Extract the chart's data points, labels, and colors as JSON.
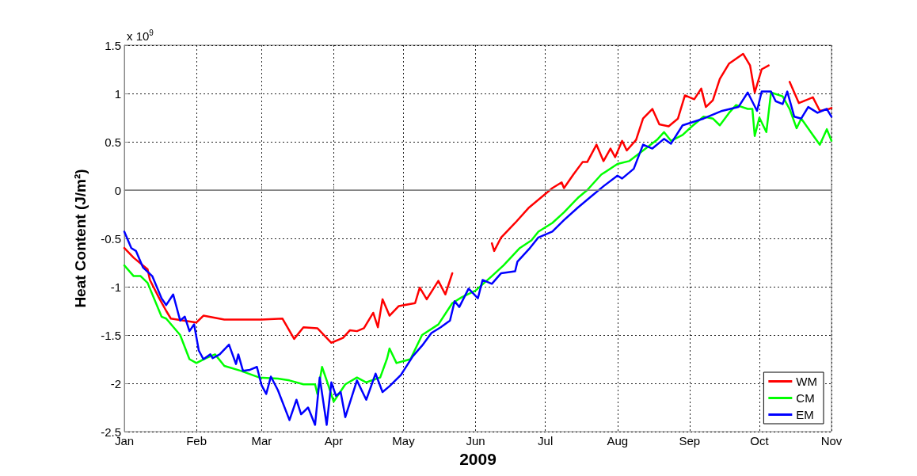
{
  "chart_data": {
    "type": "line",
    "ylabel": "Heat Content (J/m²)",
    "xlabel": "2009",
    "annotations": [
      "x 10$^{9}$"
    ],
    "xlim": [
      "2009-01-01",
      "2009-11-01"
    ],
    "xticks": [
      {
        "value": "2009-01-01",
        "label": "Jan"
      },
      {
        "value": "2009-02-01",
        "label": "Feb"
      },
      {
        "value": "2009-03-01",
        "label": "Mar"
      },
      {
        "value": "2009-04-01",
        "label": "Apr"
      },
      {
        "value": "2009-05-01",
        "label": "May"
      },
      {
        "value": "2009-06-01",
        "label": "Jun"
      },
      {
        "value": "2009-07-01",
        "label": "Jul"
      },
      {
        "value": "2009-08-01",
        "label": "Aug"
      },
      {
        "value": "2009-09-01",
        "label": "Sep"
      },
      {
        "value": "2009-10-01",
        "label": "Oct"
      },
      {
        "value": "2009-11-01",
        "label": "Nov"
      }
    ],
    "ylim": [
      -2.5,
      1.5
    ],
    "yticks": [
      -2.5,
      -2,
      -1.5,
      -1,
      -0.5,
      0,
      0.5,
      1,
      1.5
    ],
    "grid": true,
    "legend": "bottom right",
    "marker": "none",
    "line_style": "solid",
    "ref_lines": [
      {
        "axis": "y",
        "value": 0,
        "color": "#808080",
        "line_style": "solid"
      }
    ],
    "series": [
      {
        "name": "WM",
        "color": "#ff0000",
        "x": [
          "2009-01-01",
          "2009-01-05",
          "2009-01-11",
          "2009-01-12",
          "2009-01-16",
          "2009-01-19",
          "2009-01-21",
          "2009-02-01",
          "2009-02-04",
          "2009-02-13",
          "2009-03-01",
          "2009-03-10",
          "2009-03-15",
          "2009-03-19",
          "2009-03-25",
          "2009-03-31",
          "2009-04-05",
          "2009-04-08",
          "2009-04-11",
          "2009-04-14",
          "2009-04-18",
          "2009-04-20",
          "2009-04-22",
          "2009-04-25",
          "2009-04-29",
          "2009-05-06",
          "2009-05-08",
          "2009-05-11",
          "2009-05-16",
          "2009-05-19",
          "2009-05-22",
          "2009-05-31",
          "2009-06-08",
          "2009-06-09",
          "2009-06-12",
          "2009-06-18",
          "2009-06-24",
          "2009-07-04",
          "2009-07-08",
          "2009-07-09",
          "2009-07-13",
          "2009-07-17",
          "2009-07-19",
          "2009-07-23",
          "2009-07-26",
          "2009-07-29",
          "2009-07-31",
          "2009-08-03",
          "2009-08-05",
          "2009-08-09",
          "2009-08-12",
          "2009-08-16",
          "2009-08-19",
          "2009-08-23",
          "2009-08-27",
          "2009-08-30",
          "2009-09-03",
          "2009-09-06",
          "2009-09-08",
          "2009-09-11",
          "2009-09-14",
          "2009-09-18",
          "2009-09-24",
          "2009-09-27",
          "2009-09-29",
          "2009-10-02",
          "2009-10-05",
          "2009-10-09",
          "2009-10-14",
          "2009-10-18",
          "2009-10-24",
          "2009-10-27",
          "2009-10-31",
          "2009-11-01"
        ],
        "values": [
          -0.6,
          -0.7,
          -0.82,
          -0.93,
          -1.12,
          -1.25,
          -1.33,
          -1.37,
          -1.3,
          -1.34,
          -1.34,
          -1.33,
          -1.54,
          -1.42,
          -1.43,
          -1.58,
          -1.53,
          -1.45,
          -1.46,
          -1.43,
          -1.27,
          -1.42,
          -1.13,
          -1.3,
          -1.2,
          -1.17,
          -1.01,
          -1.13,
          -0.94,
          -1.08,
          -0.86,
          null,
          -0.55,
          -0.63,
          -0.49,
          -0.34,
          -0.18,
          0.02,
          0.08,
          0.02,
          0.16,
          0.29,
          0.29,
          0.47,
          0.3,
          0.43,
          0.34,
          0.51,
          0.41,
          0.52,
          0.74,
          0.84,
          0.68,
          0.66,
          0.74,
          0.98,
          0.94,
          1.05,
          0.86,
          0.93,
          1.15,
          1.31,
          1.41,
          1.29,
          1.01,
          1.25,
          1.29,
          null,
          1.12,
          0.9,
          0.96,
          0.82,
          0.84,
          0.85
        ]
      },
      {
        "name": "CM",
        "color": "#00ff00",
        "x": [
          "2009-01-01",
          "2009-01-05",
          "2009-01-08",
          "2009-01-11",
          "2009-01-17",
          "2009-01-19",
          "2009-01-25",
          "2009-01-29",
          "2009-02-01",
          "2009-02-05",
          "2009-02-09",
          "2009-02-13",
          "2009-02-20",
          "2009-02-28",
          "2009-03-08",
          "2009-03-13",
          "2009-03-19",
          "2009-03-24",
          "2009-03-25",
          "2009-03-27",
          "2009-03-29",
          "2009-04-01",
          "2009-04-06",
          "2009-04-11",
          "2009-04-15",
          "2009-04-21",
          "2009-04-24",
          "2009-04-25",
          "2009-04-28",
          "2009-05-04",
          "2009-05-09",
          "2009-05-16",
          "2009-05-22",
          "2009-05-26",
          "2009-06-01",
          "2009-06-08",
          "2009-06-13",
          "2009-06-20",
          "2009-06-25",
          "2009-06-28",
          "2009-07-04",
          "2009-07-09",
          "2009-07-15",
          "2009-07-19",
          "2009-07-25",
          "2009-08-01",
          "2009-08-06",
          "2009-08-12",
          "2009-08-18",
          "2009-08-21",
          "2009-08-24",
          "2009-08-29",
          "2009-09-02",
          "2009-09-07",
          "2009-09-11",
          "2009-09-14",
          "2009-09-18",
          "2009-09-21",
          "2009-09-26",
          "2009-09-28",
          "2009-09-29",
          "2009-10-01",
          "2009-10-04",
          "2009-10-06",
          "2009-10-11",
          "2009-10-14",
          "2009-10-17",
          "2009-10-19",
          "2009-10-24",
          "2009-10-27",
          "2009-10-30",
          "2009-11-01"
        ],
        "values": [
          -0.78,
          -0.89,
          -0.89,
          -0.96,
          -1.31,
          -1.33,
          -1.5,
          -1.75,
          -1.79,
          -1.74,
          -1.7,
          -1.82,
          -1.87,
          -1.94,
          -1.95,
          -1.97,
          -2.01,
          -2.01,
          -2.11,
          -1.83,
          -1.97,
          -2.19,
          -2.01,
          -1.94,
          -1.99,
          -1.94,
          -1.74,
          -1.64,
          -1.79,
          -1.75,
          -1.5,
          -1.39,
          -1.17,
          -1.11,
          -1.04,
          -0.89,
          -0.78,
          -0.6,
          -0.52,
          -0.43,
          -0.34,
          -0.23,
          -0.08,
          0.0,
          0.16,
          0.27,
          0.3,
          0.41,
          0.52,
          0.6,
          0.51,
          0.57,
          0.66,
          0.76,
          0.74,
          0.67,
          0.8,
          0.88,
          0.84,
          0.84,
          0.56,
          0.75,
          0.6,
          1.01,
          0.97,
          0.84,
          0.64,
          0.74,
          0.57,
          0.47,
          0.63,
          0.51
        ]
      },
      {
        "name": "EM",
        "color": "#0000ff",
        "x": [
          "2009-01-01",
          "2009-01-04",
          "2009-01-06",
          "2009-01-09",
          "2009-01-13",
          "2009-01-17",
          "2009-01-19",
          "2009-01-22",
          "2009-01-25",
          "2009-01-27",
          "2009-01-29",
          "2009-01-31",
          "2009-02-02",
          "2009-02-04",
          "2009-02-07",
          "2009-02-08",
          "2009-02-11",
          "2009-02-15",
          "2009-02-18",
          "2009-02-19",
          "2009-02-21",
          "2009-02-24",
          "2009-02-27",
          "2009-03-01",
          "2009-03-03",
          "2009-03-05",
          "2009-03-08",
          "2009-03-13",
          "2009-03-16",
          "2009-03-18",
          "2009-03-21",
          "2009-03-24",
          "2009-03-26",
          "2009-03-29",
          "2009-03-31",
          "2009-04-02",
          "2009-04-04",
          "2009-04-06",
          "2009-04-11",
          "2009-04-15",
          "2009-04-19",
          "2009-04-22",
          "2009-04-25",
          "2009-04-30",
          "2009-05-05",
          "2009-05-09",
          "2009-05-13",
          "2009-05-17",
          "2009-05-21",
          "2009-05-23",
          "2009-05-25",
          "2009-05-29",
          "2009-06-02",
          "2009-06-04",
          "2009-06-08",
          "2009-06-12",
          "2009-06-18",
          "2009-06-19",
          "2009-06-24",
          "2009-06-28",
          "2009-07-04",
          "2009-07-09",
          "2009-07-15",
          "2009-07-21",
          "2009-07-26",
          "2009-08-01",
          "2009-08-03",
          "2009-08-08",
          "2009-08-12",
          "2009-08-16",
          "2009-08-21",
          "2009-08-24",
          "2009-08-29",
          "2009-09-07",
          "2009-09-15",
          "2009-09-22",
          "2009-09-26",
          "2009-09-30",
          "2009-10-02",
          "2009-10-06",
          "2009-10-08",
          "2009-10-11",
          "2009-10-13",
          "2009-10-16",
          "2009-10-19",
          "2009-10-22",
          "2009-10-26",
          "2009-10-30",
          "2009-11-01"
        ],
        "values": [
          -0.43,
          -0.6,
          -0.63,
          -0.8,
          -0.89,
          -1.12,
          -1.19,
          -1.08,
          -1.35,
          -1.31,
          -1.46,
          -1.39,
          -1.66,
          -1.75,
          -1.7,
          -1.74,
          -1.7,
          -1.6,
          -1.8,
          -1.7,
          -1.87,
          -1.86,
          -1.83,
          -2.02,
          -2.11,
          -1.93,
          -2.07,
          -2.38,
          -2.17,
          -2.32,
          -2.25,
          -2.43,
          -1.94,
          -2.43,
          -1.99,
          -2.13,
          -2.09,
          -2.35,
          -1.97,
          -2.17,
          -1.9,
          -2.09,
          -2.03,
          -1.91,
          -1.72,
          -1.61,
          -1.48,
          -1.42,
          -1.35,
          -1.15,
          -1.21,
          -1.02,
          -1.12,
          -0.93,
          -0.97,
          -0.86,
          -0.84,
          -0.74,
          -0.61,
          -0.49,
          -0.43,
          -0.31,
          -0.18,
          -0.06,
          0.04,
          0.15,
          0.12,
          0.22,
          0.47,
          0.43,
          0.53,
          0.48,
          0.67,
          0.74,
          0.82,
          0.86,
          1.01,
          0.82,
          1.02,
          1.02,
          0.92,
          0.89,
          1.02,
          0.76,
          0.74,
          0.86,
          0.8,
          0.84,
          0.76
        ]
      }
    ]
  }
}
